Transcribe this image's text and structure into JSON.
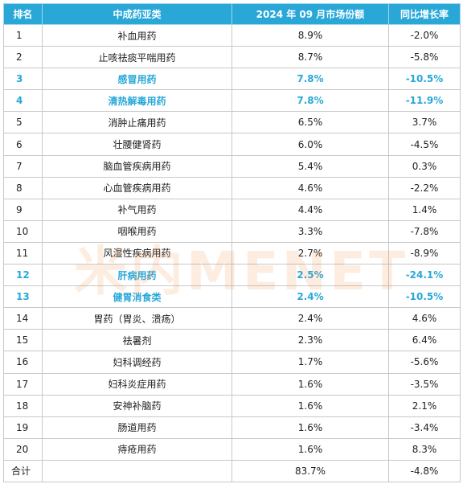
{
  "headers": [
    "排名",
    "中成药亚类",
    "2024 年 09 月市场份额",
    "同比增长率"
  ],
  "rows": [
    {
      "rank": "1",
      "category": "补血用药",
      "share": "8.9%",
      "growth": "-2.0%",
      "highlight": false
    },
    {
      "rank": "2",
      "category": "止咳祛痰平喘用药",
      "share": "8.7%",
      "growth": "-5.8%",
      "highlight": false
    },
    {
      "rank": "3",
      "category": "感冒用药",
      "share": "7.8%",
      "growth": "-10.5%",
      "highlight": true
    },
    {
      "rank": "4",
      "category": "清热解毒用药",
      "share": "7.8%",
      "growth": "-11.9%",
      "highlight": true
    },
    {
      "rank": "5",
      "category": "消肿止痛用药",
      "share": "6.5%",
      "growth": "3.7%",
      "highlight": false
    },
    {
      "rank": "6",
      "category": "壮腰健肾药",
      "share": "6.0%",
      "growth": "-4.5%",
      "highlight": false
    },
    {
      "rank": "7",
      "category": "脑血管疾病用药",
      "share": "5.4%",
      "growth": "0.3%",
      "highlight": false
    },
    {
      "rank": "8",
      "category": "心血管疾病用药",
      "share": "4.6%",
      "growth": "-2.2%",
      "highlight": false
    },
    {
      "rank": "9",
      "category": "补气用药",
      "share": "4.4%",
      "growth": "1.4%",
      "highlight": false
    },
    {
      "rank": "10",
      "category": "咽喉用药",
      "share": "3.3%",
      "growth": "-7.8%",
      "highlight": false
    },
    {
      "rank": "11",
      "category": "风湿性疾病用药",
      "share": "2.7%",
      "growth": "-8.9%",
      "highlight": false
    },
    {
      "rank": "12",
      "category": "肝病用药",
      "share": "2.5%",
      "growth": "-24.1%",
      "highlight": true
    },
    {
      "rank": "13",
      "category": "健胃消食类",
      "share": "2.4%",
      "growth": "-10.5%",
      "highlight": true
    },
    {
      "rank": "14",
      "category": "胃药（胃炎、溃疡）",
      "share": "2.4%",
      "growth": "4.6%",
      "highlight": false
    },
    {
      "rank": "15",
      "category": "祛暑剂",
      "share": "2.3%",
      "growth": "6.4%",
      "highlight": false
    },
    {
      "rank": "16",
      "category": "妇科调经药",
      "share": "1.7%",
      "growth": "-5.6%",
      "highlight": false
    },
    {
      "rank": "17",
      "category": "妇科炎症用药",
      "share": "1.6%",
      "growth": "-3.5%",
      "highlight": false
    },
    {
      "rank": "18",
      "category": "安神补脑药",
      "share": "1.6%",
      "growth": "2.1%",
      "highlight": false
    },
    {
      "rank": "19",
      "category": "肠道用药",
      "share": "1.6%",
      "growth": "-3.4%",
      "highlight": false
    },
    {
      "rank": "20",
      "category": "痔疮用药",
      "share": "1.6%",
      "growth": "8.3%",
      "highlight": false
    }
  ],
  "total": {
    "label": "合计",
    "category": "",
    "share": "83.7%",
    "growth": "-4.8%"
  },
  "watermark": {
    "prefix": "米内",
    "brand": "MENET"
  },
  "colors": {
    "header_bg": "#29a8d8",
    "highlight_text": "#29a8d8",
    "border": "#c8c8c8"
  }
}
